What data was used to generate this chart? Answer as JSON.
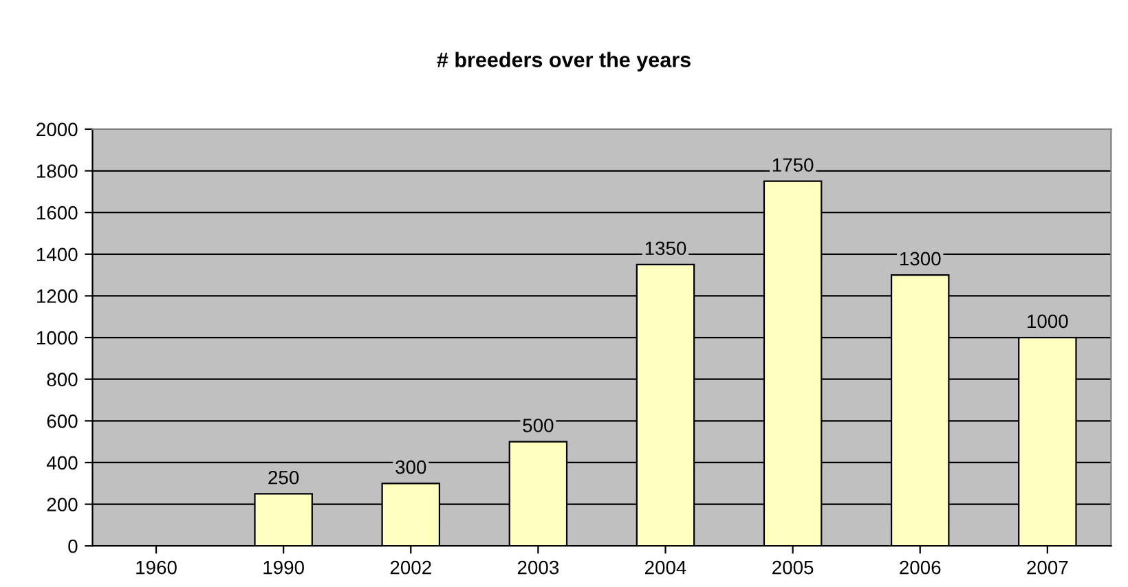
{
  "chart_data": {
    "type": "bar",
    "title": "# breeders over the years",
    "categories": [
      "1960",
      "1990",
      "2002",
      "2003",
      "2004",
      "2005",
      "2006",
      "2007"
    ],
    "values": [
      null,
      250,
      300,
      500,
      1350,
      1750,
      1300,
      1000
    ],
    "color": "#ffffc0",
    "ylim": [
      0,
      2000
    ],
    "yticks": [
      0,
      200,
      400,
      600,
      800,
      1000,
      1200,
      1400,
      1600,
      1800,
      2000
    ],
    "grid": "y",
    "data_labels": true
  }
}
